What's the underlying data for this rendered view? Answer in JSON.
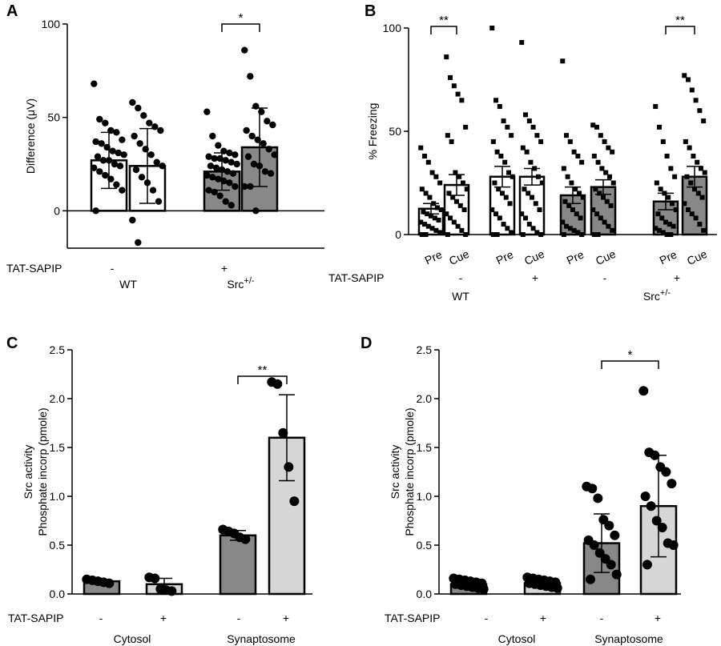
{
  "chart_data": [
    {
      "panel": "A",
      "type": "bar",
      "ylabel": "Difference (μV)",
      "ylim": [
        -20,
        100
      ],
      "yticks": [
        0,
        50,
        100
      ],
      "row_label": "TAT-SAPIP",
      "bars": [
        {
          "treatment": "-",
          "group": "WT",
          "fill": "#ffffff",
          "mean": 27,
          "sd": 15,
          "points": [
            68,
            49,
            47,
            43,
            42,
            38,
            37,
            36,
            34,
            32,
            31,
            30,
            29,
            27,
            27,
            25,
            24,
            23,
            21,
            19,
            17,
            14,
            11,
            0
          ]
        },
        {
          "treatment": "+",
          "group": "WT",
          "fill": "#ffffff",
          "mean": 24,
          "sd": 20,
          "points": [
            58,
            55,
            51,
            47,
            45,
            43,
            40,
            36,
            33,
            30,
            26,
            24,
            22,
            18,
            15,
            11,
            5,
            -5,
            -17
          ]
        },
        {
          "treatment": "-",
          "group": "Src+/-",
          "fill": "#888888",
          "mean": 21,
          "sd": 10,
          "points": [
            53,
            40,
            35,
            32,
            31,
            30,
            29,
            28,
            28,
            27,
            26,
            25,
            24,
            23,
            22,
            21,
            20,
            19,
            18,
            17,
            16,
            15,
            13,
            11,
            10,
            8,
            5,
            3
          ]
        },
        {
          "treatment": "+",
          "group": "Src+/-",
          "fill": "#888888",
          "mean": 34,
          "sd": 21,
          "points": [
            86,
            72,
            56,
            53,
            48,
            46,
            43,
            40,
            38,
            36,
            33,
            30,
            29,
            25,
            24,
            21,
            20,
            13,
            13,
            0
          ]
        }
      ],
      "groups": [
        {
          "name": "WT",
          "sup": ""
        },
        {
          "name": "Src",
          "sup": "+/-"
        }
      ],
      "significance": [
        {
          "from": 2,
          "to": 3,
          "label": "*"
        }
      ]
    },
    {
      "panel": "B",
      "type": "bar",
      "ylabel": "% Freezing",
      "ylim": [
        0,
        100
      ],
      "yticks": [
        0,
        50,
        100
      ],
      "row_label": "TAT-SAPIP",
      "bars": [
        {
          "label": "Pre",
          "treatment": "-",
          "group": "WT",
          "fill": "#ffffff",
          "mean": 12.5,
          "sem": 2.5,
          "points": [
            42,
            38,
            35,
            30,
            28,
            25,
            22,
            20,
            18,
            15,
            13,
            12,
            11,
            10,
            9,
            8,
            7,
            6,
            5,
            4,
            3,
            2,
            1,
            0,
            0
          ]
        },
        {
          "label": "Cue",
          "treatment": "-",
          "group": "WT",
          "fill": "#ffffff",
          "mean": 24,
          "sem": 5,
          "points": [
            86,
            76,
            72,
            68,
            65,
            52,
            48,
            45,
            30,
            28,
            25,
            22,
            20,
            18,
            16,
            14,
            12,
            10,
            8,
            6,
            4,
            2,
            0,
            0
          ]
        },
        {
          "label": "Pre",
          "treatment": "+",
          "group": "WT",
          "fill": "#ffffff",
          "mean": 28,
          "sem": 5,
          "points": [
            100,
            65,
            62,
            55,
            52,
            48,
            45,
            40,
            38,
            35,
            30,
            28,
            25,
            22,
            20,
            18,
            15,
            12,
            10,
            8,
            5,
            3,
            1,
            0,
            0
          ]
        },
        {
          "label": "Cue",
          "treatment": "+",
          "group": "WT",
          "fill": "#ffffff",
          "mean": 28,
          "sem": 4,
          "points": [
            93,
            58,
            55,
            52,
            48,
            45,
            42,
            40,
            35,
            32,
            28,
            25,
            22,
            20,
            18,
            15,
            12,
            10,
            8,
            5,
            3,
            1,
            0,
            0
          ]
        },
        {
          "label": "Pre",
          "treatment": "-",
          "group": "Src+/-",
          "fill": "#888888",
          "mean": 19,
          "sem": 4,
          "points": [
            84,
            48,
            45,
            40,
            38,
            35,
            32,
            28,
            25,
            22,
            20,
            18,
            16,
            14,
            12,
            10,
            8,
            6,
            4,
            3,
            2,
            1,
            0,
            0
          ]
        },
        {
          "label": "Cue",
          "treatment": "-",
          "group": "Src+/-",
          "fill": "#888888",
          "mean": 23,
          "sem": 3.5,
          "points": [
            53,
            52,
            48,
            45,
            42,
            40,
            38,
            35,
            32,
            30,
            28,
            25,
            22,
            20,
            18,
            16,
            14,
            12,
            10,
            8,
            6,
            4,
            2,
            0,
            0
          ]
        },
        {
          "label": "Pre",
          "treatment": "+",
          "group": "Src+/-",
          "fill": "#888888",
          "mean": 16,
          "sem": 4,
          "points": [
            62,
            52,
            45,
            38,
            32,
            28,
            25,
            22,
            20,
            18,
            15,
            12,
            10,
            8,
            6,
            5,
            4,
            3,
            2,
            1,
            0,
            0
          ]
        },
        {
          "label": "Cue",
          "treatment": "+",
          "group": "Src+/-",
          "fill": "#888888",
          "mean": 28,
          "sem": 5,
          "points": [
            77,
            75,
            70,
            65,
            60,
            55,
            45,
            42,
            38,
            35,
            32,
            30,
            28,
            25,
            22,
            20,
            18,
            15,
            12,
            10,
            8,
            5,
            2
          ]
        }
      ],
      "groups": [
        {
          "name": "WT",
          "sup": ""
        },
        {
          "name": "Src",
          "sup": "+/-"
        }
      ],
      "significance": [
        {
          "from": 0,
          "to": 1,
          "label": "**"
        },
        {
          "from": 6,
          "to": 7,
          "label": "**"
        }
      ]
    },
    {
      "panel": "C",
      "type": "bar",
      "ylabel": [
        "Src activity",
        "Phosphate incorp (pmole)"
      ],
      "ylim": [
        0,
        2.5
      ],
      "yticks": [
        "0.0",
        "0.5",
        "1.0",
        "1.5",
        "2.0",
        "2.5"
      ],
      "row_label": "TAT-SAPIP",
      "bars": [
        {
          "treatment": "-",
          "group": "Cytosol",
          "fill": "#888888",
          "mean": 0.13,
          "sd": 0.02,
          "points": [
            0.15,
            0.14,
            0.13,
            0.12,
            0.11
          ]
        },
        {
          "treatment": "+",
          "group": "Cytosol",
          "fill": "#d6d6d6",
          "mean": 0.1,
          "sd": 0.06,
          "points": [
            0.17,
            0.16,
            0.05,
            0.04,
            0.03
          ]
        },
        {
          "treatment": "-",
          "group": "Synaptosome",
          "fill": "#888888",
          "mean": 0.6,
          "sd": 0.05,
          "points": [
            0.66,
            0.64,
            0.62,
            0.58,
            0.56
          ]
        },
        {
          "treatment": "+",
          "group": "Synaptosome",
          "fill": "#d6d6d6",
          "mean": 1.6,
          "sd": 0.44,
          "points": [
            2.17,
            2.15,
            1.65,
            1.3,
            0.95
          ]
        }
      ],
      "groups": [
        {
          "name": "Cytosol",
          "sup": ""
        },
        {
          "name": "Synaptosome",
          "sup": ""
        }
      ],
      "significance": [
        {
          "from": 2,
          "to": 3,
          "label": "**"
        }
      ]
    },
    {
      "panel": "D",
      "type": "bar",
      "ylabel": [
        "Src activity",
        "Phosphate incorp (pmole)"
      ],
      "ylim": [
        0,
        2.5
      ],
      "yticks": [
        "0.0",
        "0.5",
        "1.0",
        "1.5",
        "2.0",
        "2.5"
      ],
      "row_label": "TAT-SAPIP",
      "bars": [
        {
          "treatment": "-",
          "group": "Cytosol",
          "fill": "#888888",
          "mean": 0.1,
          "sd": 0.04,
          "points": [
            0.16,
            0.15,
            0.14,
            0.13,
            0.12,
            0.11,
            0.1,
            0.09,
            0.08,
            0.07,
            0.06,
            0.05
          ]
        },
        {
          "treatment": "+",
          "group": "Cytosol",
          "fill": "#d6d6d6",
          "mean": 0.11,
          "sd": 0.04,
          "points": [
            0.17,
            0.16,
            0.15,
            0.14,
            0.13,
            0.12,
            0.11,
            0.1,
            0.09,
            0.08,
            0.07,
            0.06
          ]
        },
        {
          "treatment": "-",
          "group": "Synaptosome",
          "fill": "#888888",
          "mean": 0.52,
          "sd": 0.3,
          "points": [
            1.1,
            1.08,
            0.98,
            0.76,
            0.7,
            0.6,
            0.55,
            0.5,
            0.42,
            0.36,
            0.3,
            0.2,
            0.15
          ]
        },
        {
          "treatment": "+",
          "group": "Synaptosome",
          "fill": "#d6d6d6",
          "mean": 0.9,
          "sd": 0.52,
          "points": [
            2.08,
            1.45,
            1.42,
            1.3,
            1.25,
            1.13,
            1.0,
            0.9,
            0.75,
            0.68,
            0.52,
            0.5,
            0.3
          ]
        }
      ],
      "groups": [
        {
          "name": "Cytosol",
          "sup": ""
        },
        {
          "name": "Synaptosome",
          "sup": ""
        }
      ],
      "significance": [
        {
          "from": 2,
          "to": 3,
          "label": "*"
        }
      ]
    }
  ]
}
